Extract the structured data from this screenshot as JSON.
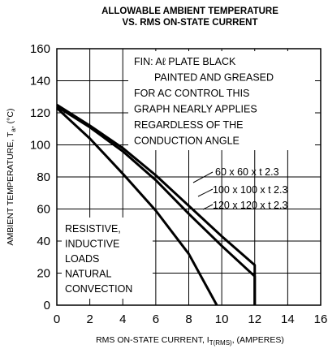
{
  "chart_data": {
    "type": "line",
    "title": [
      "ALLOWABLE AMBIENT TEMPERATURE",
      "VS. RMS ON-STATE CURRENT"
    ],
    "xlabel": {
      "text": "RMS ON-STATE CURRENT, I",
      "sub": "T(RMS)",
      "end": ", (AMPERES)"
    },
    "ylabel": {
      "text": "AMBIENT TEMPERATURE, T",
      "sub": "a",
      "end": ", (°C)"
    },
    "xlim": [
      0,
      16
    ],
    "xticks": [
      0,
      2,
      4,
      6,
      8,
      10,
      12,
      14,
      16
    ],
    "ylim": [
      0,
      160
    ],
    "yticks": [
      0,
      20,
      40,
      60,
      80,
      100,
      120,
      140,
      160
    ],
    "grid": true,
    "series": [
      {
        "name": "60 x 60 x t 2.3",
        "color": "#000000",
        "x": [
          0,
          2,
          4,
          6,
          8,
          9.7
        ],
        "values": [
          123,
          104,
          82,
          59,
          32,
          0
        ]
      },
      {
        "name": "100 x 100 x t 2.3",
        "color": "#000000",
        "x": [
          0,
          2,
          4,
          6,
          8,
          10,
          12,
          12
        ],
        "values": [
          124,
          111,
          96,
          78,
          57,
          37,
          18,
          0
        ]
      },
      {
        "name": "120 x 120 x t 2.3",
        "color": "#000000",
        "x": [
          0,
          2,
          4,
          6,
          8,
          10,
          12,
          12
        ],
        "values": [
          125,
          112,
          98,
          81,
          62,
          43,
          25,
          0
        ]
      }
    ],
    "annotations": [
      [
        "FIN: Aℓ PLATE BLACK",
        "PAINTED AND GREASED",
        "FOR AC CONTROL THIS",
        "GRAPH NEARLY APPLIES",
        "REGARDLESS OF THE",
        "CONDUCTION ANGLE"
      ],
      [
        "RESISTIVE,",
        "INDUCTIVE",
        "LOADS",
        "NATURAL",
        "CONVECTION"
      ]
    ]
  }
}
